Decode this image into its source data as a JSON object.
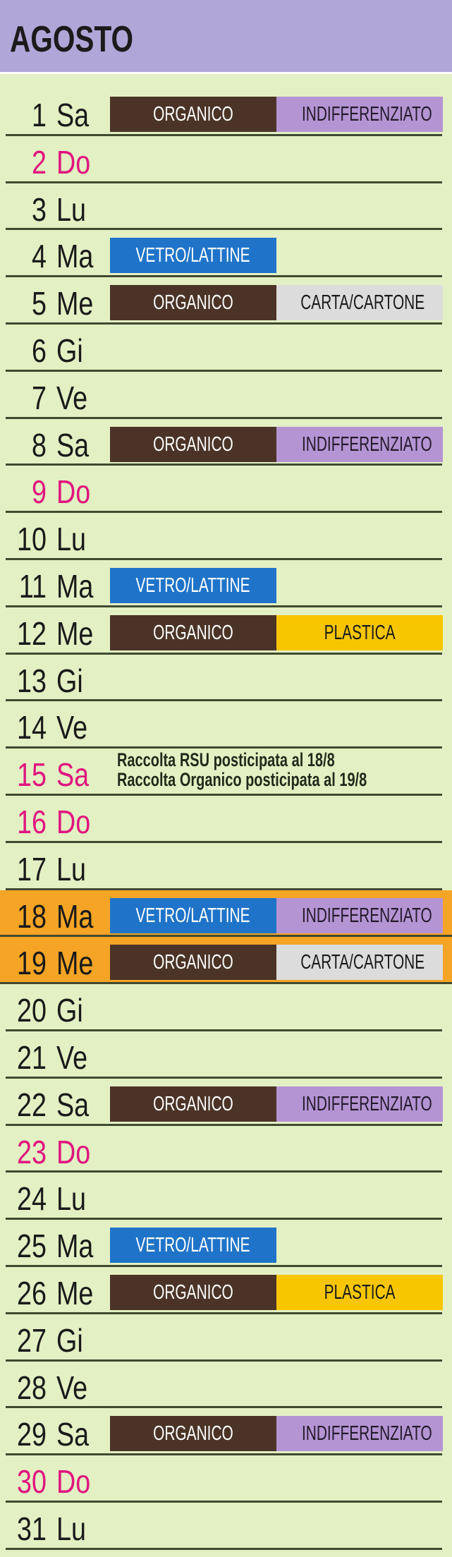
{
  "title": "AGOSTO",
  "colors": {
    "header": "#b1a6d8",
    "background": "#e3f0c3",
    "sunday": "#e0157f",
    "highlight": "#f5a425"
  },
  "bins": {
    "ORGANICO": {
      "bg": "#4b3427",
      "fg": "#ffffff"
    },
    "INDIFFERENZIATO": {
      "bg": "#b594d4",
      "fg": "#231a2a"
    },
    "VETRO/LATTINE": {
      "bg": "#1f74c9",
      "fg": "#ffffff"
    },
    "CARTA/CARTONE": {
      "bg": "#dcdcdc",
      "fg": "#1a1a1a"
    },
    "PLASTICA": {
      "bg": "#f7c600",
      "fg": "#1a1a1a"
    }
  },
  "days": [
    {
      "n": "1",
      "d": "Sa",
      "items": [
        "ORGANICO",
        "INDIFFERENZIATO"
      ]
    },
    {
      "n": "2",
      "d": "Do",
      "sunday": true,
      "items": []
    },
    {
      "n": "3",
      "d": "Lu",
      "items": []
    },
    {
      "n": "4",
      "d": "Ma",
      "items": [
        "VETRO/LATTINE"
      ]
    },
    {
      "n": "5",
      "d": "Me",
      "items": [
        "ORGANICO",
        "CARTA/CARTONE"
      ]
    },
    {
      "n": "6",
      "d": "Gi",
      "items": []
    },
    {
      "n": "7",
      "d": "Ve",
      "items": []
    },
    {
      "n": "8",
      "d": "Sa",
      "items": [
        "ORGANICO",
        "INDIFFERENZIATO"
      ]
    },
    {
      "n": "9",
      "d": "Do",
      "sunday": true,
      "items": []
    },
    {
      "n": "10",
      "d": "Lu",
      "items": []
    },
    {
      "n": "11",
      "d": "Ma",
      "items": [
        "VETRO/LATTINE"
      ]
    },
    {
      "n": "12",
      "d": "Me",
      "items": [
        "ORGANICO",
        "PLASTICA"
      ]
    },
    {
      "n": "13",
      "d": "Gi",
      "items": []
    },
    {
      "n": "14",
      "d": "Ve",
      "items": []
    },
    {
      "n": "15",
      "d": "Sa",
      "sunday": true,
      "items": [],
      "note": [
        "Raccolta RSU posticipata al 18/8",
        "Raccolta Organico posticipata al 19/8"
      ]
    },
    {
      "n": "16",
      "d": "Do",
      "sunday": true,
      "items": []
    },
    {
      "n": "17",
      "d": "Lu",
      "items": []
    },
    {
      "n": "18",
      "d": "Ma",
      "highlight": true,
      "items": [
        "VETRO/LATTINE",
        "INDIFFERENZIATO"
      ]
    },
    {
      "n": "19",
      "d": "Me",
      "highlight": true,
      "items": [
        "ORGANICO",
        "CARTA/CARTONE"
      ]
    },
    {
      "n": "20",
      "d": "Gi",
      "items": []
    },
    {
      "n": "21",
      "d": "Ve",
      "items": []
    },
    {
      "n": "22",
      "d": "Sa",
      "items": [
        "ORGANICO",
        "INDIFFERENZIATO"
      ]
    },
    {
      "n": "23",
      "d": "Do",
      "sunday": true,
      "items": []
    },
    {
      "n": "24",
      "d": "Lu",
      "items": []
    },
    {
      "n": "25",
      "d": "Ma",
      "items": [
        "VETRO/LATTINE"
      ]
    },
    {
      "n": "26",
      "d": "Me",
      "items": [
        "ORGANICO",
        "PLASTICA"
      ]
    },
    {
      "n": "27",
      "d": "Gi",
      "items": []
    },
    {
      "n": "28",
      "d": "Ve",
      "items": []
    },
    {
      "n": "29",
      "d": "Sa",
      "items": [
        "ORGANICO",
        "INDIFFERENZIATO"
      ]
    },
    {
      "n": "30",
      "d": "Do",
      "sunday": true,
      "items": []
    },
    {
      "n": "31",
      "d": "Lu",
      "items": []
    }
  ]
}
